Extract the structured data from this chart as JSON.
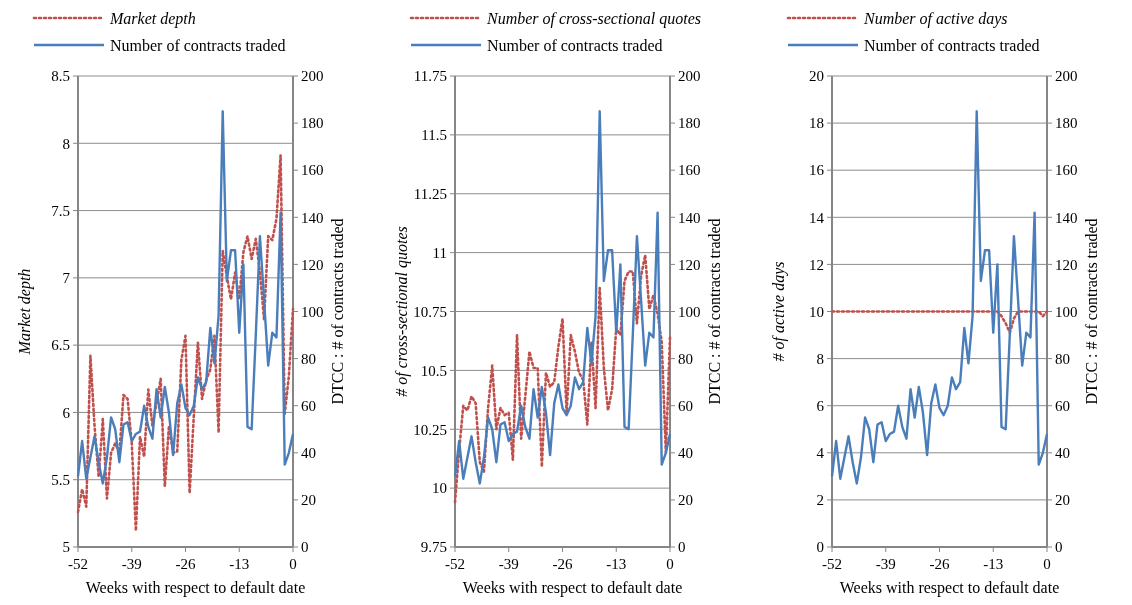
{
  "chart_data": [
    {
      "type": "line",
      "xlabel": "Weeks with respect to default date",
      "ylabel": "Market depth",
      "y2label": "DTCC : # of contracts traded",
      "x": [
        -52,
        -51,
        -50,
        -49,
        -48,
        -47,
        -46,
        -45,
        -44,
        -43,
        -42,
        -41,
        -40,
        -39,
        -38,
        -37,
        -36,
        -35,
        -34,
        -33,
        -32,
        -31,
        -30,
        -29,
        -28,
        -27,
        -26,
        -25,
        -24,
        -23,
        -22,
        -21,
        -20,
        -19,
        -18,
        -17,
        -16,
        -15,
        -14,
        -13,
        -12,
        -11,
        -10,
        -9,
        -8,
        -7,
        -6,
        -5,
        -4,
        -3,
        -2,
        -1,
        0
      ],
      "xlim": [
        -52,
        0
      ],
      "xticks": [
        -52,
        -39,
        -26,
        -13,
        0
      ],
      "ylim": [
        5,
        8.5
      ],
      "yticks": [
        5,
        5.5,
        6,
        6.5,
        7,
        7.5,
        8,
        8.5
      ],
      "y2lim": [
        0,
        200
      ],
      "y2ticks": [
        0,
        20,
        40,
        60,
        80,
        100,
        120,
        140,
        160,
        180,
        200
      ],
      "grid": "y",
      "legend": "top",
      "series": [
        {
          "name": "Market depth",
          "color": "#c0504d",
          "line_style": "dotted",
          "values": [
            5.26,
            5.43,
            5.3,
            6.42,
            5.9,
            5.52,
            5.95,
            5.36,
            5.7,
            5.77,
            5.7,
            6.13,
            6.1,
            5.77,
            5.12,
            5.82,
            5.67,
            6.17,
            5.9,
            6.07,
            6.25,
            5.45,
            5.9,
            5.7,
            5.71,
            6.39,
            6.57,
            5.4,
            5.97,
            6.52,
            6.1,
            6.24,
            6.32,
            6.57,
            5.85,
            7.2,
            7.01,
            6.84,
            7.04,
            6.84,
            7.19,
            7.31,
            7.14,
            7.29,
            7.04,
            6.69,
            7.31,
            7.28,
            7.44,
            7.91,
            5.99,
            6.27,
            6.77
          ]
        },
        {
          "name": "Number of contracts traded",
          "color": "#4a7ebb",
          "line_style": "solid",
          "axis": "y2",
          "values": [
            30,
            45,
            29,
            38,
            47,
            36,
            27,
            38,
            55,
            50,
            36,
            52,
            53,
            45,
            48,
            49,
            60,
            51,
            46,
            67,
            55,
            68,
            57,
            39,
            61,
            69,
            59,
            56,
            60,
            72,
            67,
            70,
            93,
            78,
            98,
            185,
            113,
            126,
            126,
            91,
            120,
            51,
            50,
            90,
            132,
            105,
            77,
            91,
            89,
            142,
            35,
            40,
            48
          ]
        }
      ]
    },
    {
      "type": "line",
      "xlabel": "Weeks with respect to default date",
      "ylabel": "# of cross-sectional quotes",
      "y2label": "DTCC : # of contracts traded",
      "x": [
        -52,
        -51,
        -50,
        -49,
        -48,
        -47,
        -46,
        -45,
        -44,
        -43,
        -42,
        -41,
        -40,
        -39,
        -38,
        -37,
        -36,
        -35,
        -34,
        -33,
        -32,
        -31,
        -30,
        -29,
        -28,
        -27,
        -26,
        -25,
        -24,
        -23,
        -22,
        -21,
        -20,
        -19,
        -18,
        -17,
        -16,
        -15,
        -14,
        -13,
        -12,
        -11,
        -10,
        -9,
        -8,
        -7,
        -6,
        -5,
        -4,
        -3,
        -2,
        -1,
        0
      ],
      "xlim": [
        -52,
        0
      ],
      "xticks": [
        -52,
        -39,
        -26,
        -13,
        0
      ],
      "ylim": [
        9.75,
        11.75
      ],
      "yticks": [
        9.75,
        10,
        10.25,
        10.5,
        10.75,
        11,
        11.25,
        11.5,
        11.75
      ],
      "y2lim": [
        0,
        200
      ],
      "y2ticks": [
        0,
        20,
        40,
        60,
        80,
        100,
        120,
        140,
        160,
        180,
        200
      ],
      "grid": "y",
      "legend": "top",
      "series": [
        {
          "name": "Number of cross-sectional quotes",
          "color": "#c0504d",
          "line_style": "dotted",
          "values": [
            9.94,
            10.16,
            10.35,
            10.33,
            10.39,
            10.36,
            10.11,
            10.07,
            10.34,
            10.52,
            10.25,
            10.34,
            10.31,
            10.32,
            10.12,
            10.65,
            10.21,
            10.39,
            10.58,
            10.51,
            10.51,
            10.09,
            10.49,
            10.43,
            10.45,
            10.6,
            10.72,
            10.32,
            10.65,
            10.58,
            10.49,
            10.46,
            10.27,
            10.62,
            10.34,
            10.85,
            10.51,
            10.33,
            10.42,
            10.68,
            10.65,
            10.88,
            10.92,
            10.92,
            10.7,
            10.9,
            10.99,
            10.76,
            10.82,
            10.74,
            10.62,
            10.15,
            10.64
          ]
        },
        {
          "name": "Number of contracts traded",
          "color": "#4a7ebb",
          "line_style": "solid",
          "axis": "y2",
          "values": [
            30,
            45,
            29,
            38,
            47,
            36,
            27,
            38,
            55,
            50,
            36,
            52,
            53,
            45,
            48,
            49,
            60,
            51,
            46,
            67,
            55,
            68,
            57,
            39,
            61,
            69,
            59,
            56,
            60,
            72,
            67,
            70,
            93,
            78,
            98,
            185,
            113,
            126,
            126,
            91,
            120,
            51,
            50,
            90,
            132,
            105,
            77,
            91,
            89,
            142,
            35,
            40,
            48
          ]
        }
      ]
    },
    {
      "type": "line",
      "xlabel": "Weeks with respect to default date",
      "ylabel": "# of active days",
      "y2label": "DTCC : # of contracts traded",
      "x": [
        -52,
        -51,
        -50,
        -49,
        -48,
        -47,
        -46,
        -45,
        -44,
        -43,
        -42,
        -41,
        -40,
        -39,
        -38,
        -37,
        -36,
        -35,
        -34,
        -33,
        -32,
        -31,
        -30,
        -29,
        -28,
        -27,
        -26,
        -25,
        -24,
        -23,
        -22,
        -21,
        -20,
        -19,
        -18,
        -17,
        -16,
        -15,
        -14,
        -13,
        -12,
        -11,
        -10,
        -9,
        -8,
        -7,
        -6,
        -5,
        -4,
        -3,
        -2,
        -1,
        0
      ],
      "xlim": [
        -52,
        0
      ],
      "xticks": [
        -52,
        -39,
        -26,
        -13,
        0
      ],
      "ylim": [
        0,
        20
      ],
      "yticks": [
        0,
        2,
        4,
        6,
        8,
        10,
        12,
        14,
        16,
        18,
        20
      ],
      "y2lim": [
        0,
        200
      ],
      "y2ticks": [
        0,
        20,
        40,
        60,
        80,
        100,
        120,
        140,
        160,
        180,
        200
      ],
      "grid": "y",
      "legend": "top",
      "series": [
        {
          "name": "Number of active days",
          "color": "#c0504d",
          "line_style": "dotted",
          "values": [
            10,
            10,
            10,
            10,
            10,
            10,
            10,
            10,
            10,
            10,
            10,
            10,
            10,
            10,
            10,
            10,
            10,
            10,
            10,
            10,
            10,
            10,
            10,
            10,
            10,
            10,
            10,
            10,
            10,
            10,
            10,
            10,
            10,
            10,
            10,
            10,
            10,
            10,
            10,
            10,
            10,
            9.8,
            9.5,
            9.1,
            9.7,
            10,
            10,
            10,
            10,
            10,
            10,
            9.8,
            10
          ]
        },
        {
          "name": "Number of contracts traded",
          "color": "#4a7ebb",
          "line_style": "solid",
          "axis": "y2",
          "values": [
            30,
            45,
            29,
            38,
            47,
            36,
            27,
            38,
            55,
            50,
            36,
            52,
            53,
            45,
            48,
            49,
            60,
            51,
            46,
            67,
            55,
            68,
            57,
            39,
            61,
            69,
            59,
            56,
            60,
            72,
            67,
            70,
            93,
            78,
            98,
            185,
            113,
            126,
            126,
            91,
            120,
            51,
            50,
            90,
            132,
            105,
            77,
            91,
            89,
            142,
            35,
            40,
            48
          ]
        }
      ]
    }
  ]
}
